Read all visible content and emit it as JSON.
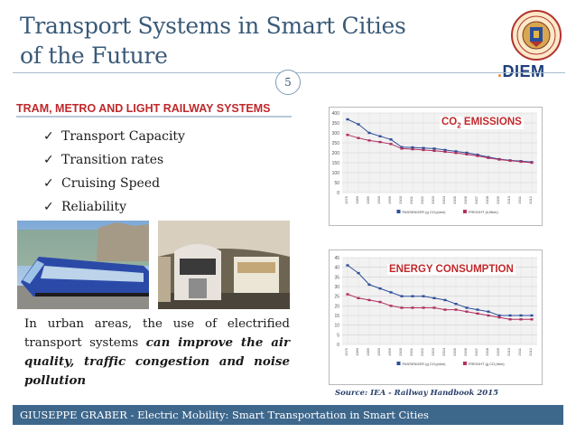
{
  "slide": {
    "title_line1": "Transport Systems in Smart Cities",
    "title_line2": "of the Future",
    "page_number": "5",
    "logo_text": "DIEM",
    "logo_dot": ".",
    "section_title": "TRAM, METRO AND LIGHT RAILWAY SYSTEMS",
    "checklist": [
      {
        "label": "Transport Capacity"
      },
      {
        "label": "Transition rates"
      },
      {
        "label": "Cruising Speed"
      },
      {
        "label": "Reliability"
      }
    ],
    "check_glyph": "✓",
    "paragraph_plain": "In urban areas, the use of electrified transport systems ",
    "paragraph_emphasis": "can improve the air quality, traffic congestion and noise pollution",
    "source": "Source: IEA - Railway Handbook 2015",
    "footer": "GIUSEPPE GRABER - Electric Mobility: Smart Transportation in Smart Cities",
    "colors": {
      "title": "#3a5a78",
      "accent_red": "#c0282b",
      "footer_bg": "#3e678c",
      "passenger": "#2f4f9a",
      "freight": "#b03060"
    },
    "images": [
      "tram-photo",
      "metro-photo"
    ]
  },
  "chart_data": [
    {
      "type": "line",
      "title_main": "CO",
      "title_sub": "2",
      "title_rest": " EMISSIONS",
      "yticks": [
        "400",
        "350",
        "300",
        "250",
        "200",
        "150",
        "100",
        "50",
        "0"
      ],
      "ylim": [
        0,
        400
      ],
      "x": [
        "1975",
        "1980",
        "1985",
        "1990",
        "1995",
        "2000",
        "2001",
        "2002",
        "2003",
        "2004",
        "2005",
        "2006",
        "2007",
        "2008",
        "2009",
        "2010",
        "2011",
        "2012"
      ],
      "series": [
        {
          "name": "PASSENGER (g CO₂/pkm)",
          "values": [
            368,
            343,
            300,
            283,
            267,
            228,
            227,
            224,
            221,
            214,
            207,
            200,
            190,
            178,
            168,
            162,
            158,
            153
          ]
        },
        {
          "name": "FREIGHT (kJ/tkm)",
          "values": [
            290,
            274,
            262,
            254,
            244,
            221,
            218,
            214,
            210,
            205,
            199,
            192,
            184,
            174,
            166,
            160,
            155,
            150
          ]
        }
      ]
    },
    {
      "type": "line",
      "title": "ENERGY CONSUMPTION",
      "yticks": [
        "45",
        "40",
        "35",
        "30",
        "25",
        "20",
        "15",
        "10",
        "5",
        "0"
      ],
      "ylim": [
        0,
        45
      ],
      "x": [
        "1975",
        "1980",
        "1985",
        "1990",
        "1995",
        "2000",
        "2001",
        "2002",
        "2003",
        "2004",
        "2005",
        "2006",
        "2007",
        "2008",
        "2009",
        "2010",
        "2011",
        "2012"
      ],
      "series": [
        {
          "name": "PASSENGER (g CO₂/pkm)",
          "values": [
            41,
            37,
            31,
            29,
            27,
            25,
            25,
            25,
            24,
            23,
            21,
            19,
            18,
            17,
            15,
            15,
            15,
            15
          ]
        },
        {
          "name": "FREIGHT (g CO₂/tkm)",
          "values": [
            26,
            24,
            23,
            22,
            20,
            19,
            19,
            19,
            19,
            18,
            18,
            17,
            16,
            15,
            14,
            13,
            13,
            13
          ]
        }
      ]
    }
  ]
}
